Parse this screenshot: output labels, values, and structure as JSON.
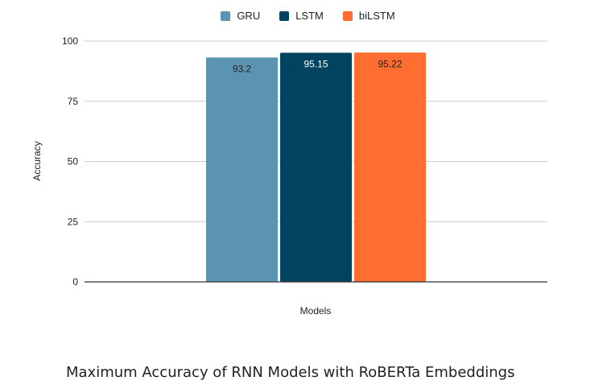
{
  "chart_data": {
    "type": "bar",
    "categories": [
      ""
    ],
    "series": [
      {
        "name": "GRU",
        "values": [
          93.2
        ],
        "color": "#5b94b2",
        "label_color": "#222222"
      },
      {
        "name": "LSTM",
        "values": [
          95.15
        ],
        "color": "#024362",
        "label_color": "#ffffff"
      },
      {
        "name": "biLSTM",
        "values": [
          95.22
        ],
        "color": "#ff6d31",
        "label_color": "#222222"
      }
    ],
    "data_labels": [
      "93.2",
      "95.15",
      "95.22"
    ],
    "xlabel": "Models",
    "ylabel": "Accuracy",
    "ylim": [
      0,
      100
    ],
    "yticks": [
      "0",
      "25",
      "50",
      "75",
      "100"
    ],
    "grid": true,
    "legend_position": "top"
  },
  "caption": "Maximum Accuracy of RNN Models with RoBERTa Embeddings"
}
